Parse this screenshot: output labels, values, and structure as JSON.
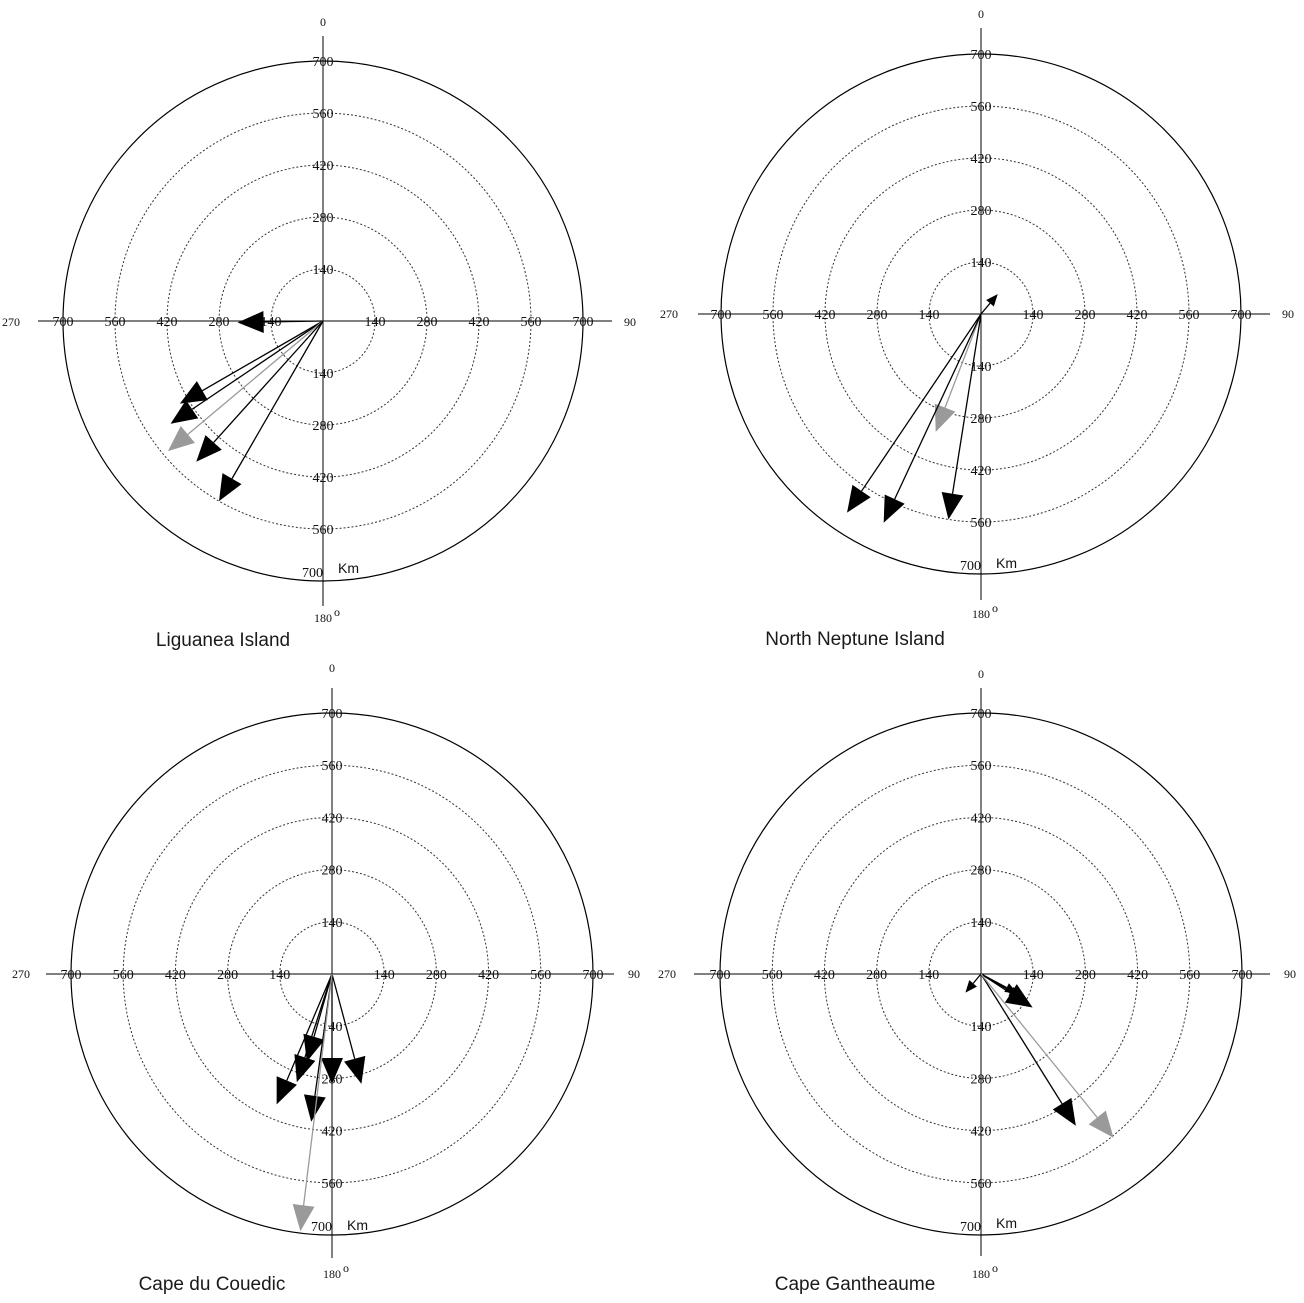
{
  "ring_step_km": 140,
  "max_range_km": 700,
  "tick_labels": [
    "140",
    "280",
    "420",
    "560",
    "700"
  ],
  "compass": {
    "north": "0",
    "east": "90",
    "south": "180",
    "south_degree_sign": "o",
    "west": "270"
  },
  "unit_label": "Km",
  "colors": {
    "primary_arrow": "#000000",
    "highlight_arrow": "#9a9a9a",
    "axis": "#000000",
    "ring": "#333333"
  },
  "chart_data": [
    {
      "type": "polar-vector",
      "title": "Liguanea Island",
      "rlim": [
        0,
        700
      ],
      "grid": true,
      "arrows": [
        {
          "bearing_deg": 269,
          "range_km": 230,
          "color": "primary"
        },
        {
          "bearing_deg": 240,
          "range_km": 445,
          "color": "primary"
        },
        {
          "bearing_deg": 236,
          "range_km": 495,
          "color": "primary"
        },
        {
          "bearing_deg": 230,
          "range_km": 545,
          "color": "highlight"
        },
        {
          "bearing_deg": 222,
          "range_km": 510,
          "color": "primary"
        },
        {
          "bearing_deg": 210,
          "range_km": 560,
          "color": "primary"
        }
      ]
    },
    {
      "type": "polar-vector",
      "title": "North Neptune Island",
      "rlim": [
        0,
        700
      ],
      "grid": true,
      "arrows": [
        {
          "bearing_deg": 40,
          "range_km": 70,
          "color": "primary"
        },
        {
          "bearing_deg": 201,
          "range_km": 340,
          "color": "highlight"
        },
        {
          "bearing_deg": 214,
          "range_km": 645,
          "color": "primary"
        },
        {
          "bearing_deg": 205,
          "range_km": 620,
          "color": "primary"
        },
        {
          "bearing_deg": 189,
          "range_km": 560,
          "color": "primary"
        }
      ]
    },
    {
      "type": "polar-vector",
      "title": "Cape du Couedic",
      "rlim": [
        0,
        700
      ],
      "grid": true,
      "arrows": [
        {
          "bearing_deg": 198,
          "range_km": 305,
          "color": "primary"
        },
        {
          "bearing_deg": 196,
          "range_km": 245,
          "color": "primary"
        },
        {
          "bearing_deg": 203,
          "range_km": 380,
          "color": "primary"
        },
        {
          "bearing_deg": 188,
          "range_km": 400,
          "color": "primary"
        },
        {
          "bearing_deg": 180,
          "range_km": 295,
          "color": "primary"
        },
        {
          "bearing_deg": 165,
          "range_km": 305,
          "color": "primary"
        },
        {
          "bearing_deg": 187,
          "range_km": 695,
          "color": "highlight"
        }
      ]
    },
    {
      "type": "polar-vector",
      "title": "Cape Gantheaume",
      "rlim": [
        0,
        700
      ],
      "grid": true,
      "arrows": [
        {
          "bearing_deg": 220,
          "range_km": 65,
          "color": "primary"
        },
        {
          "bearing_deg": 120,
          "range_km": 125,
          "color": "primary"
        },
        {
          "bearing_deg": 118,
          "range_km": 110,
          "color": "primary"
        },
        {
          "bearing_deg": 123,
          "range_km": 165,
          "color": "primary"
        },
        {
          "bearing_deg": 148,
          "range_km": 480,
          "color": "primary"
        },
        {
          "bearing_deg": 141,
          "range_km": 565,
          "color": "highlight"
        }
      ]
    }
  ]
}
